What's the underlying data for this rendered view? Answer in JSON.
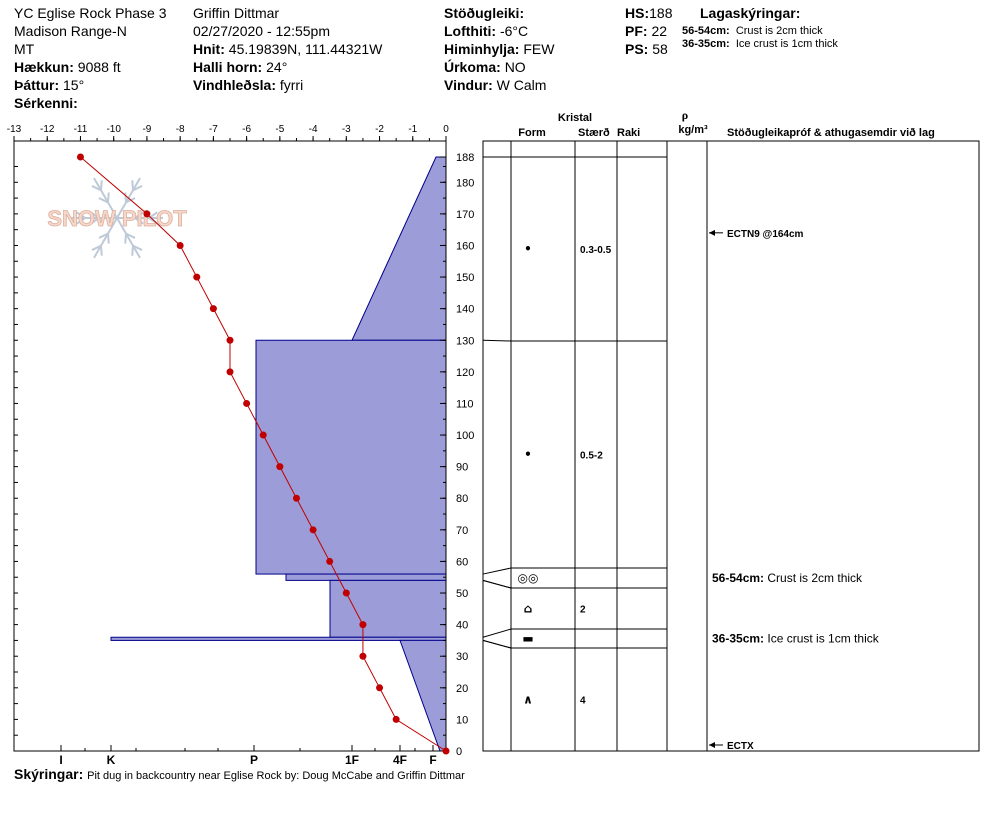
{
  "header": {
    "site_name": "YC Eglise Rock Phase 3",
    "range": "Madison Range-N",
    "state": "MT",
    "elevation_label": "Hækkun:",
    "elevation": "9088 ft",
    "aspect_label": "Þáttur:",
    "aspect": "15°",
    "features_label": "Sérkenni:",
    "observer": "Griffin Dittmar",
    "datetime": "02/27/2020 - 12:55pm",
    "coords_label": "Hnit:",
    "coords": "45.19839N, 111.44321W",
    "slope_label": "Halli horn:",
    "slope": "24°",
    "wind_loading_label": "Vindhleðsla:",
    "wind_loading": "fyrri",
    "stability_label": "Stöðugleiki:",
    "air_temp_label": "Lofthiti:",
    "air_temp": "-6°C",
    "sky_label": "Himinhylja:",
    "sky": "FEW",
    "precip_label": "Úrkoma:",
    "precip": "NO",
    "wind_label": "Vindur:",
    "wind": "W Calm",
    "hs_label": "HS:",
    "hs": "188",
    "pf_label": "PF:",
    "pf": "22",
    "ps_label": "PS:",
    "ps": "58",
    "layer_notes_label": "Lagaskýringar:",
    "layer_notes": [
      {
        "range": "56-54cm:",
        "text": "Crust is 2cm thick"
      },
      {
        "range": "36-35cm:",
        "text": "Ice crust is 1cm thick"
      }
    ]
  },
  "footer": {
    "label": "Skýringar:",
    "text": "Pit dug in backcountry near Eglise Rock by: Doug McCabe and Griffin Dittmar"
  },
  "logo_text": "SNOW PILOT",
  "colors": {
    "hardness_fill": "#9c9cd8",
    "hardness_stroke": "#00008b",
    "temp": "#c00000"
  },
  "chart_data": {
    "type": "snow_profile",
    "temp_axis": {
      "ticks": [
        "-13",
        "-12",
        "-11",
        "-10",
        "-9",
        "-8",
        "-7",
        "-6",
        "-5",
        "-4",
        "-3",
        "-2",
        "-1",
        "0"
      ],
      "range": [
        -13,
        0
      ]
    },
    "height_axis": {
      "ticks": [
        "188",
        "180",
        "170",
        "160",
        "150",
        "140",
        "130",
        "120",
        "110",
        "100",
        "90",
        "80",
        "70",
        "60",
        "50",
        "40",
        "30",
        "20",
        "10",
        "0"
      ],
      "range": [
        0,
        188
      ]
    },
    "hardness_axis": {
      "labels": [
        "I",
        "K",
        "P",
        "1F",
        "4F",
        "F"
      ]
    },
    "hardness_profile": [
      {
        "height_top": 188,
        "height_bottom": 130,
        "hardness": "F to 4F-"
      },
      {
        "height_top": 130,
        "height_bottom": 56,
        "hardness": "P-"
      },
      {
        "height_top": 56,
        "height_bottom": 54,
        "hardness": "P"
      },
      {
        "height_top": 54,
        "height_bottom": 36,
        "hardness": "1F-"
      },
      {
        "height_top": 36,
        "height_bottom": 35,
        "hardness": "K+"
      },
      {
        "height_top": 35,
        "height_bottom": 0,
        "hardness": "4F to F"
      }
    ],
    "temperature_profile": [
      {
        "height": 188,
        "temp": -11
      },
      {
        "height": 170,
        "temp": -9
      },
      {
        "height": 160,
        "temp": -8
      },
      {
        "height": 150,
        "temp": -7.5
      },
      {
        "height": 140,
        "temp": -7
      },
      {
        "height": 130,
        "temp": -6.5
      },
      {
        "height": 120,
        "temp": -6.5
      },
      {
        "height": 110,
        "temp": -6
      },
      {
        "height": 100,
        "temp": -5.5
      },
      {
        "height": 90,
        "temp": -5
      },
      {
        "height": 80,
        "temp": -4.5
      },
      {
        "height": 70,
        "temp": -4
      },
      {
        "height": 60,
        "temp": -3.5
      },
      {
        "height": 50,
        "temp": -3
      },
      {
        "height": 40,
        "temp": -2.5
      },
      {
        "height": 30,
        "temp": -2.5
      },
      {
        "height": 20,
        "temp": -2
      },
      {
        "height": 10,
        "temp": -1.5
      },
      {
        "height": 0,
        "temp": 0
      }
    ],
    "table_headers": {
      "crystal": "Kristal",
      "form": "Form",
      "size": "Stærð",
      "moisture": "Raki",
      "density_symbol": "ρ",
      "density_unit": "kg/m³",
      "tests": "Stöðugleikapróf & athugasemdir við lag"
    },
    "layers": [
      {
        "top": 188,
        "bottom": 130,
        "form_symbol": "•",
        "size": "0.3-0.5"
      },
      {
        "top": 130,
        "bottom": 58,
        "form_symbol": "•",
        "size": "0.5-2"
      },
      {
        "top": 58,
        "bottom": 52,
        "form_symbol": "◎◎",
        "size": "",
        "note_range": "56-54cm:",
        "note_text": "Crust is 2cm thick"
      },
      {
        "top": 52,
        "bottom": 39,
        "form_symbol": "⌂",
        "size": "2"
      },
      {
        "top": 39,
        "bottom": 33,
        "form_symbol": "▬",
        "size": "",
        "note_range": "36-35cm:",
        "note_text": "Ice crust is 1cm thick"
      },
      {
        "top": 33,
        "bottom": 0,
        "form_symbol": "∧",
        "size": "4"
      }
    ],
    "stability_tests": [
      {
        "height": 164,
        "label": "ECTN9 @164cm"
      },
      {
        "height": 0,
        "label": "ECTX"
      }
    ]
  }
}
